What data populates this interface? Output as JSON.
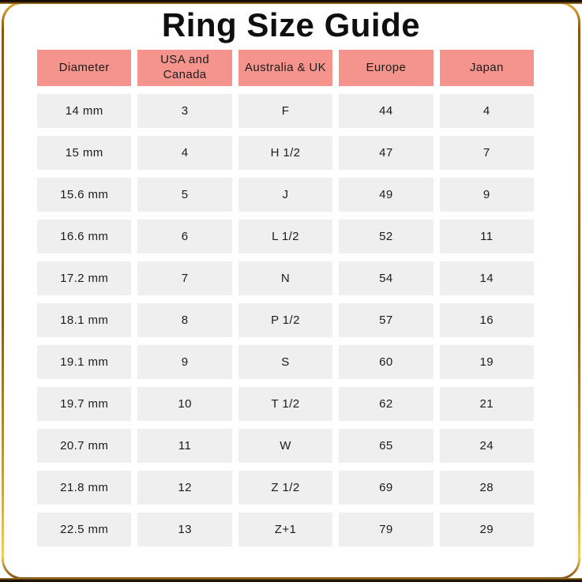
{
  "title": "Ring Size Guide",
  "theme": {
    "header_bg": "#f5948c",
    "row_bg": "#efefef",
    "title_color": "#0f0f0f",
    "text_color": "#1c1c1c",
    "frame_gold": "#b57f1e",
    "frame_gold_light": "#f2cd62",
    "frame_dark": "#120a01"
  },
  "chart_data": {
    "type": "table",
    "title": "Ring Size Guide",
    "columns": [
      "Diameter",
      "USA and Canada",
      "Australia & UK",
      "Europe",
      "Japan"
    ],
    "rows": [
      [
        "14 mm",
        "3",
        "F",
        "44",
        "4"
      ],
      [
        "15 mm",
        "4",
        "H 1/2",
        "47",
        "7"
      ],
      [
        "15.6 mm",
        "5",
        "J",
        "49",
        "9"
      ],
      [
        "16.6 mm",
        "6",
        "L 1/2",
        "52",
        "11"
      ],
      [
        "17.2 mm",
        "7",
        "N",
        "54",
        "14"
      ],
      [
        "18.1 mm",
        "8",
        "P 1/2",
        "57",
        "16"
      ],
      [
        "19.1 mm",
        "9",
        "S",
        "60",
        "19"
      ],
      [
        "19.7 mm",
        "10",
        "T 1/2",
        "62",
        "21"
      ],
      [
        "20.7 mm",
        "11",
        "W",
        "65",
        "24"
      ],
      [
        "21.8 mm",
        "12",
        "Z 1/2",
        "69",
        "28"
      ],
      [
        "22.5 mm",
        "13",
        "Z+1",
        "79",
        "29"
      ]
    ],
    "layout": {
      "grid": "off",
      "header_position": "top",
      "cell_style": "separated-blocks"
    }
  }
}
